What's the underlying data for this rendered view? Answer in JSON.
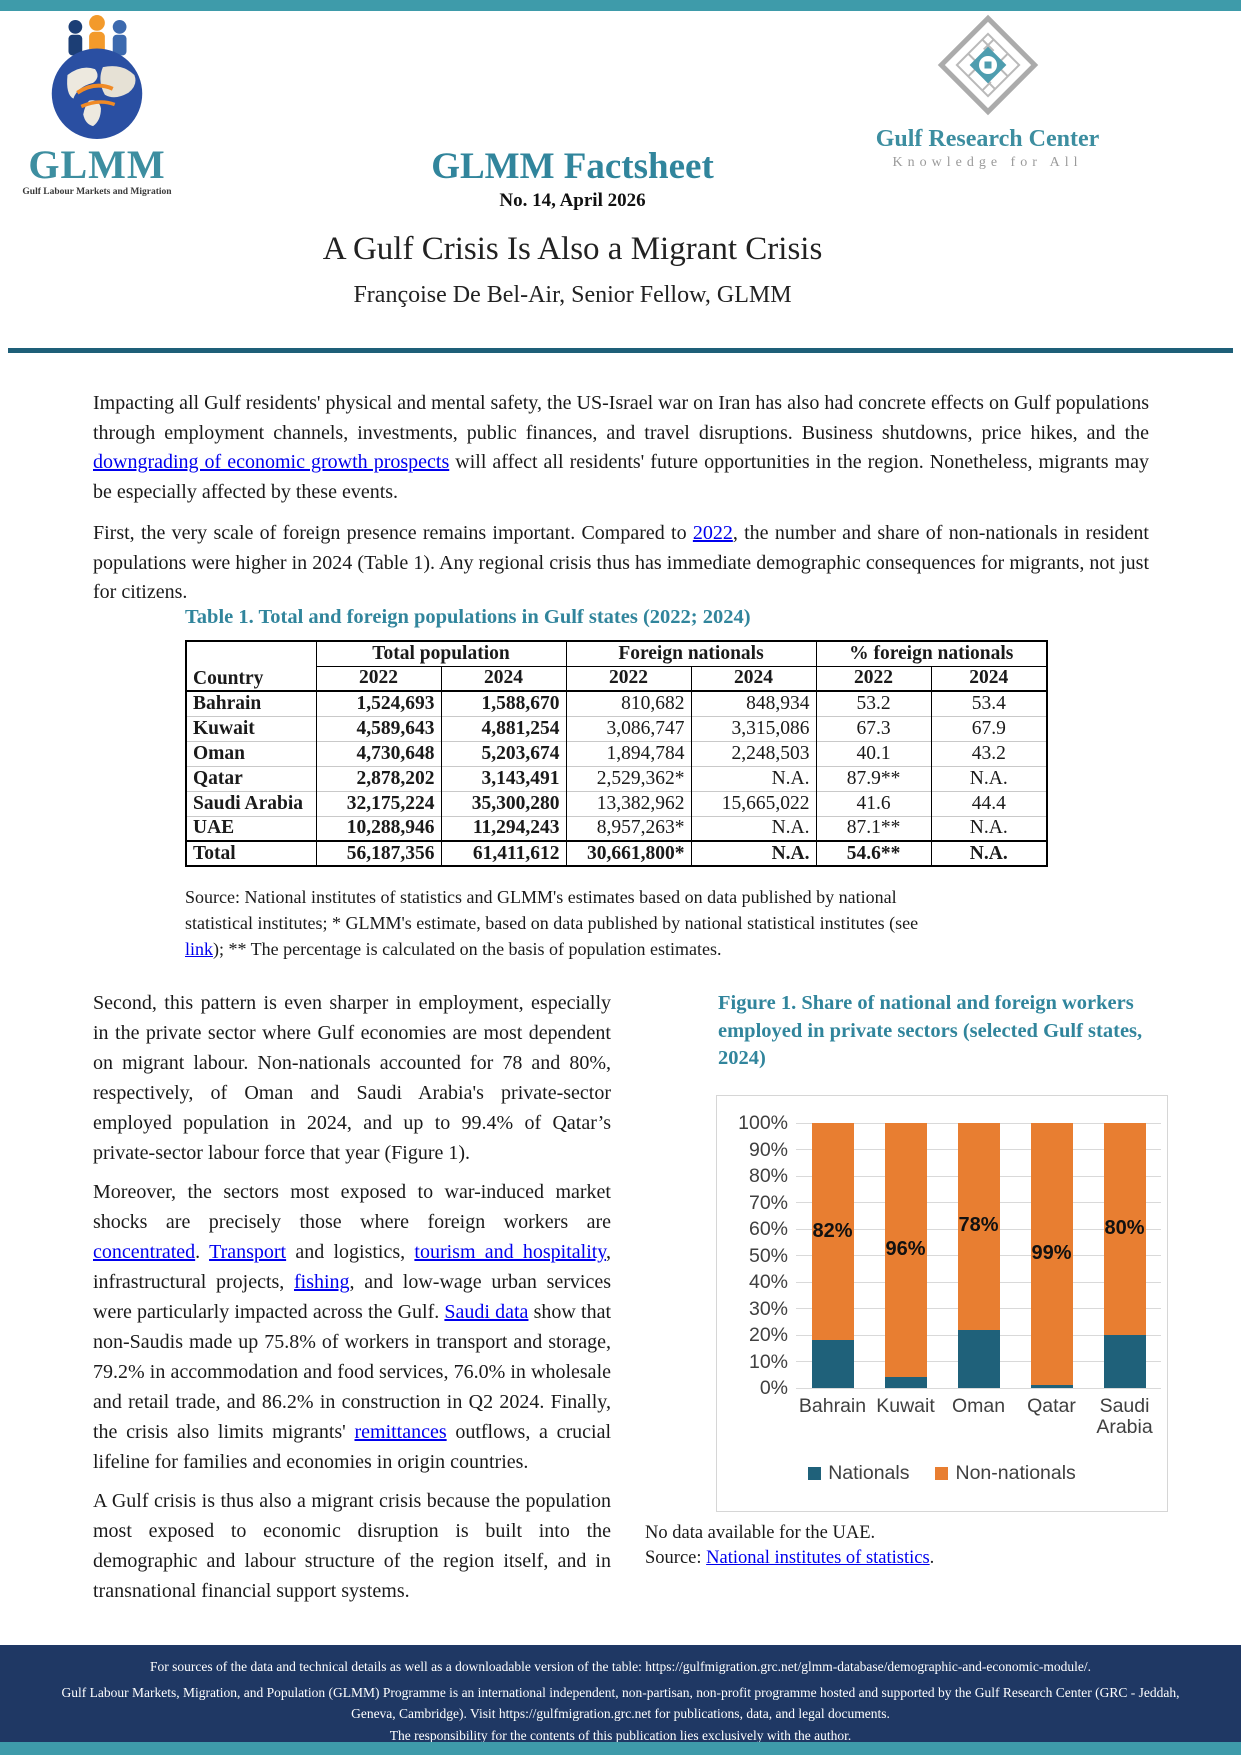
{
  "meta": {
    "colors": {
      "teal_bar": "#3E9BAA",
      "accent_teal": "#31859C",
      "divider_rule": "#1E5F78",
      "link_blue": "#0000EE",
      "footer_bg": "#1F3864",
      "nationals_blue": "#1F617A",
      "non_nationals_orange": "#E87E31"
    }
  },
  "header": {
    "glmm_logo_text": "GLMM",
    "glmm_logo_tagline": "Gulf Labour Markets and Migration",
    "grc_logo_name": "Gulf Research Center",
    "grc_logo_tagline": "Knowledge for All",
    "factsheet_title": "GLMM Factsheet",
    "issue_line": "No. 14, April 2026",
    "doc_title": "A Gulf Crisis Is Also a Migrant Crisis",
    "author": "Françoise De Bel-Air, Senior Fellow, GLMM"
  },
  "intro": {
    "p1": [
      {
        "text": "Impacting all Gulf residents' physical and mental safety, the US-Israel war on Iran has also had concrete effects on Gulf populations through employment channels, investments, public finances, and travel disruptions. Business shutdowns, price hikes, and the "
      },
      {
        "text": "downgrading of economic growth prospects",
        "link": true
      },
      {
        "text": " will affect all residents' future opportunities in the region. Nonetheless, migrants may be especially affected by these events."
      }
    ],
    "p2": [
      {
        "text": "First, the very scale of foreign presence remains important. Compared to "
      },
      {
        "text": "2022",
        "link": true
      },
      {
        "text": ", the number and share of non-nationals in resident populations were higher in 2024 (Table 1). Any regional crisis thus has immediate demographic consequences for migrants, not just for citizens."
      }
    ]
  },
  "table1": {
    "caption": "Table 1. Total and foreign populations in Gulf states (2022; 2024)",
    "country_header": "Country",
    "group_headers": [
      "Total population",
      "Foreign nationals",
      "% foreign nationals"
    ],
    "year_headers": [
      "2022",
      "2024",
      "2022",
      "2024",
      "2022",
      "2024"
    ],
    "rows": [
      {
        "country": "Bahrain",
        "cells": [
          "1,524,693",
          "1,588,670",
          "810,682",
          "848,934",
          "53.2",
          "53.4"
        ],
        "bold": false
      },
      {
        "country": "Kuwait",
        "cells": [
          "4,589,643",
          "4,881,254",
          "3,086,747",
          "3,315,086",
          "67.3",
          "67.9"
        ],
        "bold": false
      },
      {
        "country": "Oman",
        "cells": [
          "4,730,648",
          "5,203,674",
          "1,894,784",
          "2,248,503",
          "40.1",
          "43.2"
        ],
        "bold": false
      },
      {
        "country": "Qatar",
        "cells": [
          "2,878,202",
          "3,143,491",
          "2,529,362*",
          "N.A.",
          "87.9**",
          "N.A."
        ],
        "bold": false
      },
      {
        "country": "Saudi Arabia",
        "cells": [
          "32,175,224",
          "35,300,280",
          "13,382,962",
          "15,665,022",
          "41.6",
          "44.4"
        ],
        "bold": false
      },
      {
        "country": "UAE",
        "cells": [
          "10,288,946",
          "11,294,243",
          "8,957,263*",
          "N.A.",
          "87.1**",
          "N.A."
        ],
        "bold": false
      },
      {
        "country": "Total",
        "cells": [
          "56,187,356",
          "61,411,612",
          "30,661,800*",
          "N.A.",
          "54.6**",
          "N.A."
        ],
        "bold": true
      }
    ],
    "source": [
      {
        "text": "Source: National institutes of statistics and GLMM's estimates based on data published by national statistical institutes; * GLMM's estimate, based on data published by national statistical institutes (see "
      },
      {
        "text": "link",
        "link": true
      },
      {
        "text": "); ** The percentage is calculated on the basis of population estimates."
      }
    ]
  },
  "body_left": {
    "p3": [
      {
        "text": "Second, this pattern is even sharper in employment, especially in the private sector where Gulf economies are most dependent on migrant labour. Non-nationals accounted for 78 and 80%, respectively, of Oman and Saudi Arabia's private-sector employed population in 2024, and up to 99.4% of Qatar’s private-sector labour force that year (Figure 1)."
      }
    ],
    "p4": [
      {
        "text": "Moreover, the sectors most exposed to war-induced market shocks are precisely those where foreign workers are "
      },
      {
        "text": "concentrated",
        "link": true
      },
      {
        "text": ". "
      },
      {
        "text": "Transport",
        "link": true
      },
      {
        "text": " and logistics, "
      },
      {
        "text": "tourism and hospitality",
        "link": true
      },
      {
        "text": ", infrastructural projects, "
      },
      {
        "text": "fishing",
        "link": true
      },
      {
        "text": ", and low-wage urban services were particularly impacted across the Gulf. "
      },
      {
        "text": "Saudi data",
        "link": true
      },
      {
        "text": " show that non-Saudis made up 75.8% of workers in transport and storage, 79.2% in accommodation and food services, 76.0% in wholesale and retail trade, and 86.2% in construction in Q2 2024. Finally, the crisis also limits migrants' "
      },
      {
        "text": "remittances",
        "link": true
      },
      {
        "text": " outflows, a crucial lifeline for families and economies in origin countries."
      }
    ],
    "p5": [
      {
        "text": "A Gulf crisis is thus also a migrant crisis because the population most exposed to economic disruption is built into the demographic and labour structure of the region itself, and in transnational financial support systems."
      }
    ]
  },
  "figure1": {
    "caption": "Figure 1. Share of national and foreign workers employed in private sectors (selected Gulf states, 2024)",
    "note": "No data available for the UAE.",
    "source": [
      {
        "text": "Source: "
      },
      {
        "text": "National institutes of statistics",
        "link": true
      },
      {
        "text": "."
      }
    ]
  },
  "chart_data": {
    "type": "bar",
    "stacked": true,
    "title": "",
    "categories": [
      "Bahrain",
      "Kuwait",
      "Oman",
      "Qatar",
      "Saudi Arabia"
    ],
    "series": [
      {
        "name": "Nationals",
        "color": "#1F617A",
        "values": [
          18,
          4,
          22,
          1,
          20
        ]
      },
      {
        "name": "Non-nationals",
        "color": "#E87E31",
        "values": [
          82,
          96,
          78,
          99,
          80
        ]
      }
    ],
    "data_labels": [
      "82%",
      "96%",
      "78%",
      "99%",
      "80%"
    ],
    "y_ticks": [
      "0%",
      "10%",
      "20%",
      "30%",
      "40%",
      "50%",
      "60%",
      "70%",
      "80%",
      "90%",
      "100%"
    ],
    "ylim": [
      0,
      100
    ],
    "grid": true,
    "legend_position": "bottom"
  },
  "footer": {
    "line1": "For sources of the data and technical details as well as a downloadable version of the table:  https://gulfmigration.grc.net/glmm-database/demographic-and-economic-module/.",
    "line2": "Gulf Labour Markets, Migration, and Population (GLMM) Programme is an international independent, non-partisan, non-profit programme hosted and supported by the Gulf Research Center (GRC - Jeddah, Geneva, Cambridge). Visit https://gulfmigration.grc.net for publications, data, and legal documents.",
    "line3": "The responsibility for the contents of this publication lies exclusively with the author."
  }
}
